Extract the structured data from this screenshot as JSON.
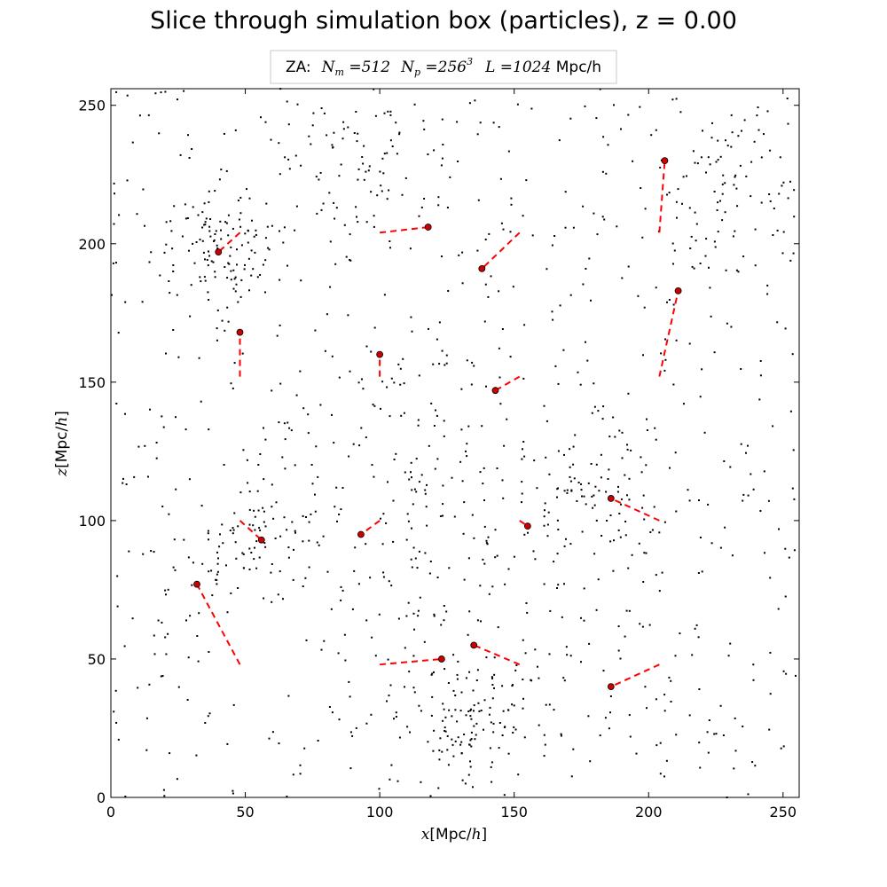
{
  "chart_data": {
    "type": "scatter",
    "title": "Slice through simulation box (particles), z = 0.00",
    "legend": {
      "placement": "top-center",
      "prefix": "ZA:",
      "nm_sym": "N",
      "nm_sub": "m",
      "nm_val": " =512",
      "np_sym": "N",
      "np_sub": "p",
      "np_val": " =256",
      "np_exp": "3",
      "l_sym": "L",
      "l_val": " =1024",
      "unit": " Mpc/h"
    },
    "xlabel": {
      "math": "x",
      "text": "[Mpc/",
      "math2": "h",
      "close": "]"
    },
    "ylabel": {
      "math": "z",
      "text": "[Mpc/",
      "math2": "h",
      "close": "]"
    },
    "xlim": [
      0,
      256
    ],
    "ylim": [
      0,
      256
    ],
    "xticks": [
      0,
      50,
      100,
      150,
      200,
      250
    ],
    "yticks": [
      0,
      50,
      100,
      150,
      200,
      250
    ],
    "grid": false,
    "background_particles": {
      "color": "#000000",
      "approx_count": 1400,
      "clusters": [
        {
          "x": 40,
          "y": 200,
          "r": 18,
          "weight": 3
        },
        {
          "x": 135,
          "y": 25,
          "r": 20,
          "weight": 3
        },
        {
          "x": 230,
          "y": 220,
          "r": 25,
          "weight": 2
        },
        {
          "x": 125,
          "y": 100,
          "r": 30,
          "weight": 2
        },
        {
          "x": 180,
          "y": 110,
          "r": 25,
          "weight": 2
        },
        {
          "x": 55,
          "y": 95,
          "r": 20,
          "weight": 2
        },
        {
          "x": 90,
          "y": 230,
          "r": 25,
          "weight": 1.5
        },
        {
          "x": 110,
          "y": 150,
          "r": 25,
          "weight": 1
        }
      ]
    },
    "tracked_particles": {
      "marker_color": "#cc0000",
      "line_color": "#ff0000",
      "points": [
        {
          "x": 206,
          "y": 230,
          "x0": 204,
          "y0": 204
        },
        {
          "x": 118,
          "y": 206,
          "x0": 100,
          "y0": 204
        },
        {
          "x": 40,
          "y": 197,
          "x0": 48,
          "y0": 204
        },
        {
          "x": 138,
          "y": 191,
          "x0": 152,
          "y0": 204
        },
        {
          "x": 211,
          "y": 183,
          "x0": 204,
          "y0": 152
        },
        {
          "x": 48,
          "y": 168,
          "x0": 48,
          "y0": 152
        },
        {
          "x": 100,
          "y": 160,
          "x0": 100,
          "y0": 152
        },
        {
          "x": 143,
          "y": 147,
          "x0": 152,
          "y0": 152
        },
        {
          "x": 186,
          "y": 108,
          "x0": 204,
          "y0": 100
        },
        {
          "x": 155,
          "y": 98,
          "x0": 152,
          "y0": 100
        },
        {
          "x": 93,
          "y": 95,
          "x0": 100,
          "y0": 100
        },
        {
          "x": 56,
          "y": 93,
          "x0": 48,
          "y0": 100
        },
        {
          "x": 32,
          "y": 77,
          "x0": 48,
          "y0": 48
        },
        {
          "x": 135,
          "y": 55,
          "x0": 152,
          "y0": 48
        },
        {
          "x": 123,
          "y": 50,
          "x0": 100,
          "y0": 48
        },
        {
          "x": 186,
          "y": 40,
          "x0": 204,
          "y0": 48
        }
      ]
    }
  }
}
